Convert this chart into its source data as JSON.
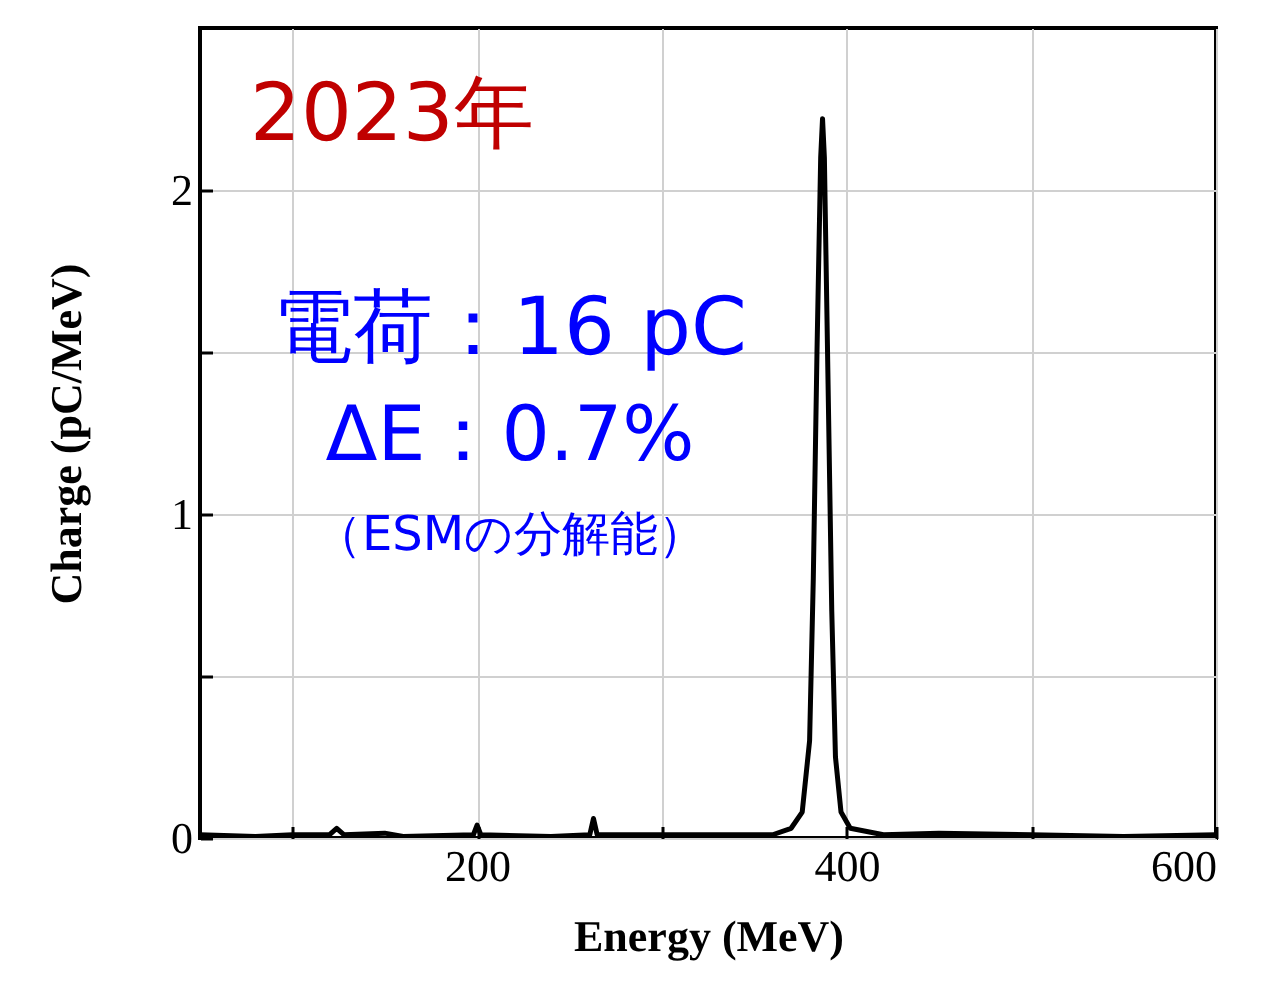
{
  "chart_data": {
    "type": "line",
    "xlabel": "Energy (MeV)",
    "ylabel": "Charge (pC/MeV)",
    "annotations": [
      "2023年",
      "電荷：16 pC",
      "ΔE：0.7%",
      "（ESMの分解能）"
    ],
    "xlim": [
      50,
      600
    ],
    "ylim": [
      0,
      2.5
    ],
    "xticks": [
      {
        "value": 100,
        "label": null
      },
      200,
      {
        "value": 300,
        "label": null
      },
      400,
      {
        "value": 500,
        "label": null
      },
      600
    ],
    "yticks": [
      0,
      {
        "value": 0.5,
        "label": null
      },
      1,
      {
        "value": 1.5,
        "label": null
      },
      2
    ],
    "grid": true,
    "marker": "none",
    "line_style": "solid",
    "series": [
      {
        "color": "#000000",
        "x": [
          50,
          80,
          100,
          120,
          124,
          128,
          150,
          160,
          198,
          200,
          202,
          240,
          261,
          263,
          265,
          300,
          340,
          360,
          370,
          376,
          380,
          382,
          384,
          386,
          387,
          388,
          390,
          392,
          394,
          397,
          402,
          420,
          450,
          500,
          550,
          600
        ],
        "values": [
          0.01,
          0.005,
          0.01,
          0.01,
          0.03,
          0.01,
          0.015,
          0.005,
          0.01,
          0.04,
          0.01,
          0.005,
          0.01,
          0.06,
          0.01,
          0.01,
          0.01,
          0.01,
          0.03,
          0.08,
          0.3,
          0.8,
          1.5,
          2.1,
          2.22,
          2.1,
          1.4,
          0.7,
          0.25,
          0.08,
          0.03,
          0.01,
          0.015,
          0.01,
          0.005,
          0.01
        ]
      }
    ]
  }
}
